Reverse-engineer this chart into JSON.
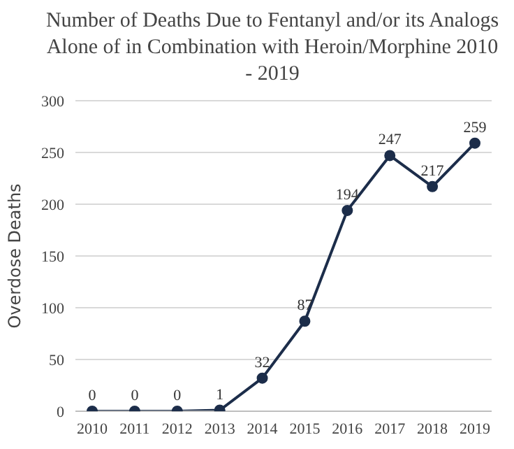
{
  "chart_data": {
    "type": "line",
    "title": "Number of Deaths Due to Fentanyl and/or its Analogs Alone of in Combination with Heroin/Morphine 2010 - 2019",
    "ylabel": "Overdose Deaths",
    "categories": [
      "2010",
      "2011",
      "2012",
      "2013",
      "2014",
      "2015",
      "2016",
      "2017",
      "2018",
      "2019"
    ],
    "series": [
      {
        "color": "#1c2d4a",
        "values": [
          0,
          0,
          0,
          1,
          32,
          87,
          194,
          247,
          217,
          259
        ]
      }
    ],
    "ylim": [
      0,
      300
    ],
    "yticks": [
      0,
      50,
      100,
      150,
      200,
      250,
      300
    ],
    "grid": "y",
    "marker": "circle",
    "line_style": "solid",
    "data_labels": true
  }
}
